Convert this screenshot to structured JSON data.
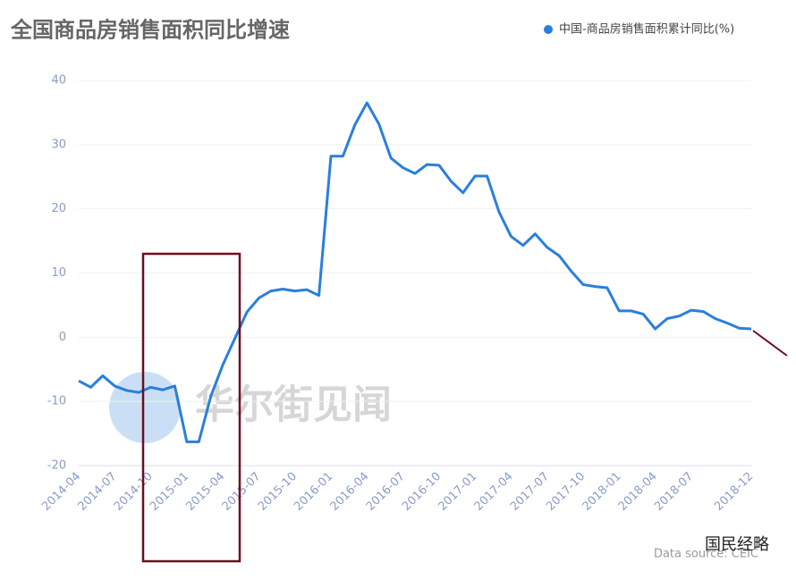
{
  "chart_data": {
    "type": "line",
    "title": "全国商品房销售面积同比增速",
    "categories": [
      "2014-04",
      null,
      null,
      "2014-07",
      null,
      null,
      "2014-10",
      null,
      null,
      "2015-01",
      null,
      null,
      "2015-04",
      null,
      null,
      "2015-07",
      null,
      null,
      "2015-10",
      null,
      null,
      "2016-01",
      null,
      null,
      "2016-04",
      null,
      null,
      "2016-07",
      null,
      null,
      "2016-10",
      null,
      null,
      "2017-01",
      null,
      null,
      "2017-04",
      null,
      null,
      "2017-07",
      null,
      null,
      "2017-10",
      null,
      null,
      "2018-01",
      null,
      null,
      "2018-04",
      null,
      null,
      "2018-07",
      null,
      null,
      null,
      null,
      "2018-12"
    ],
    "series": [
      {
        "name": "中国-商品房销售面积累计同比(%)",
        "color": "#2a7fdc",
        "values": [
          -6.8,
          -7.8,
          -6.0,
          -7.6,
          -8.3,
          -8.6,
          -7.8,
          -8.2,
          -7.6,
          -16.3,
          -16.3,
          -9.2,
          -4.3,
          -0.2,
          3.9,
          6.1,
          7.2,
          7.5,
          7.2,
          7.4,
          6.5,
          28.2,
          28.2,
          33.1,
          36.5,
          33.2,
          27.9,
          26.4,
          25.5,
          26.9,
          26.8,
          24.3,
          22.5,
          25.1,
          25.1,
          19.5,
          15.7,
          14.3,
          16.1,
          14.0,
          12.7,
          10.3,
          8.2,
          7.9,
          7.7,
          4.1,
          4.1,
          3.6,
          1.3,
          2.9,
          3.3,
          4.2,
          4.0,
          2.9,
          2.2,
          1.4,
          1.3
        ]
      }
    ],
    "ylim": [
      -20,
      40
    ],
    "yticks": [
      -20,
      -10,
      0,
      10,
      20,
      30,
      40
    ],
    "grid": true,
    "watermark": "华尔街见闻",
    "source": "Data source: CEIC",
    "brand": "国民经略"
  }
}
